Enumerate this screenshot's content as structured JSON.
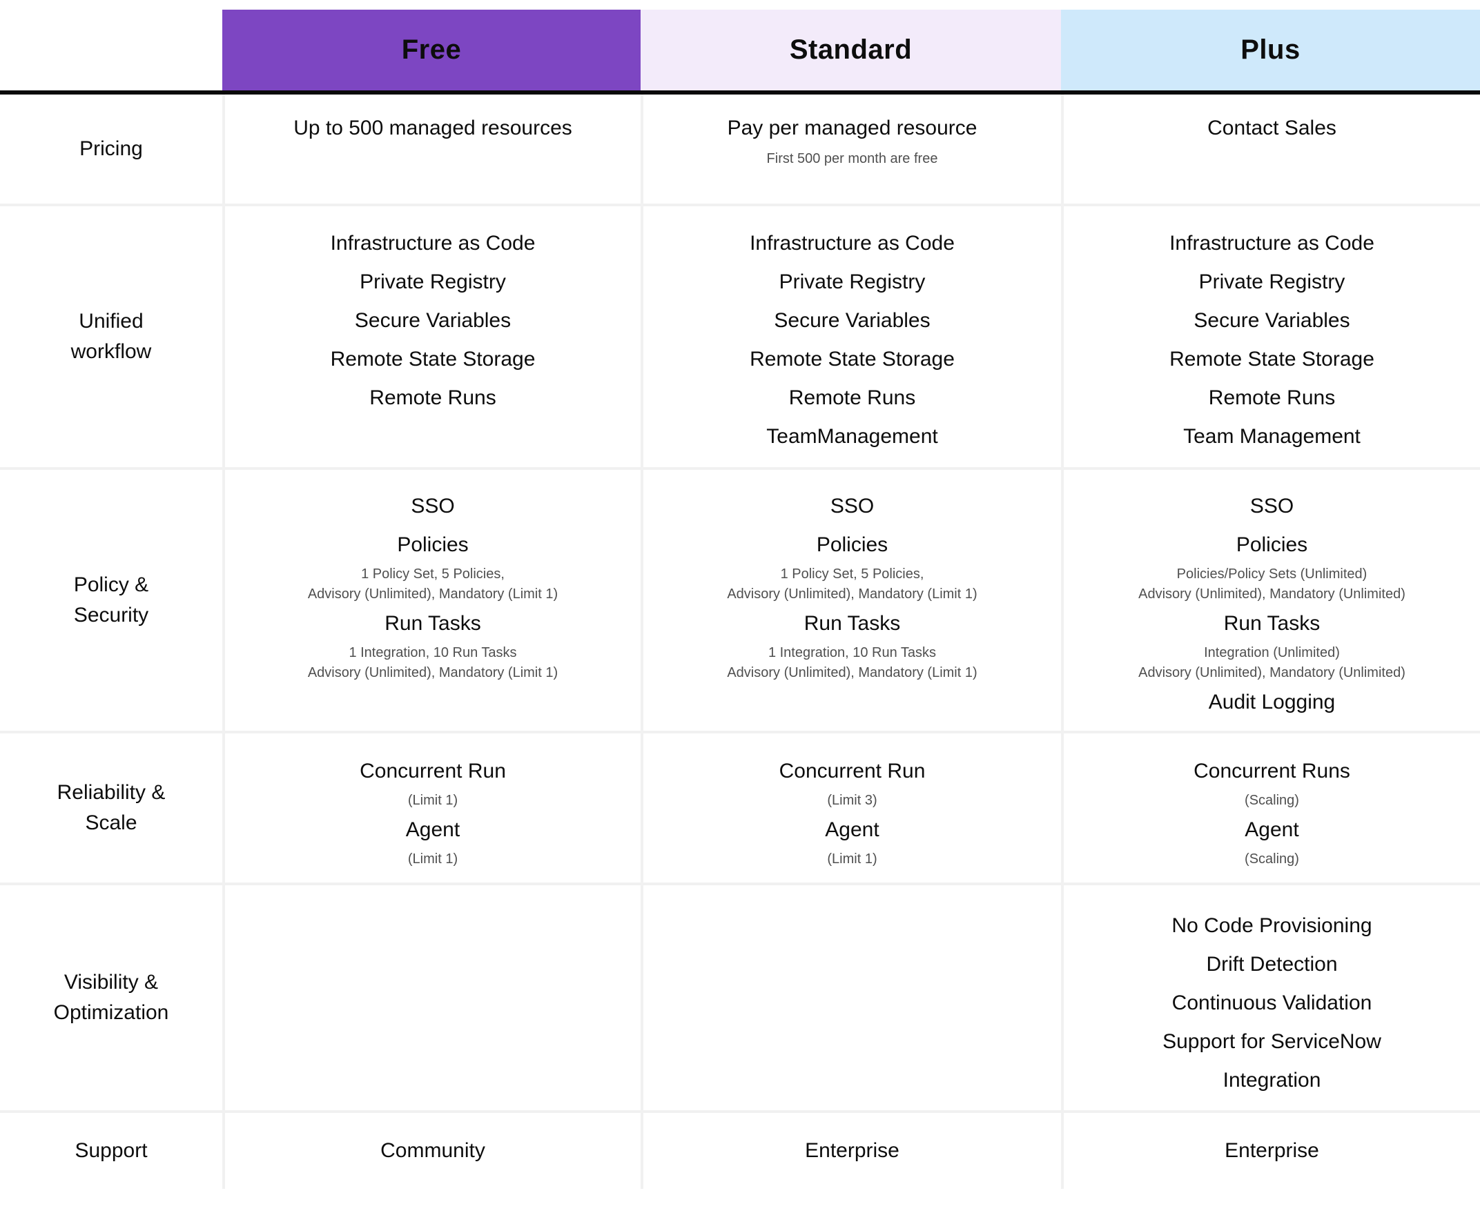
{
  "table": {
    "columns": [
      {
        "label": "Free",
        "header_bg": "#7d46c2"
      },
      {
        "label": "Standard",
        "header_bg": "#f3ebfa"
      },
      {
        "label": "Plus",
        "header_bg": "#cfe9fb"
      }
    ],
    "rows": [
      {
        "label": "Pricing",
        "cells": {
          "free": {
            "lines": [
              {
                "text": "Up to 500 managed resources",
                "type": "feature"
              }
            ]
          },
          "standard": {
            "lines": [
              {
                "text": "Pay per managed resource",
                "type": "feature"
              },
              {
                "text": "First 500 per month are free",
                "type": "note"
              }
            ]
          },
          "plus": {
            "lines": [
              {
                "text": "Contact Sales",
                "type": "feature"
              }
            ]
          }
        }
      },
      {
        "label": "Unified workflow",
        "cells": {
          "free": {
            "lines": [
              {
                "text": "Infrastructure as Code",
                "type": "feature"
              },
              {
                "text": "Private Registry",
                "type": "feature"
              },
              {
                "text": "Secure Variables",
                "type": "feature"
              },
              {
                "text": "Remote State Storage",
                "type": "feature"
              },
              {
                "text": "Remote Runs",
                "type": "feature"
              }
            ]
          },
          "standard": {
            "lines": [
              {
                "text": "Infrastructure as Code",
                "type": "feature"
              },
              {
                "text": "Private Registry",
                "type": "feature"
              },
              {
                "text": "Secure Variables",
                "type": "feature"
              },
              {
                "text": "Remote State Storage",
                "type": "feature"
              },
              {
                "text": "Remote Runs",
                "type": "feature"
              },
              {
                "text": "TeamManagement",
                "type": "feature"
              }
            ]
          },
          "plus": {
            "lines": [
              {
                "text": "Infrastructure as Code",
                "type": "feature"
              },
              {
                "text": "Private Registry",
                "type": "feature"
              },
              {
                "text": "Secure Variables",
                "type": "feature"
              },
              {
                "text": "Remote State Storage",
                "type": "feature"
              },
              {
                "text": "Remote Runs",
                "type": "feature"
              },
              {
                "text": "Team Management",
                "type": "feature"
              }
            ]
          }
        }
      },
      {
        "label": "Policy & Security",
        "cells": {
          "free": {
            "lines": [
              {
                "text": "SSO",
                "type": "feature"
              },
              {
                "text": "Policies",
                "type": "feature"
              },
              {
                "text": "1 Policy Set, 5 Policies,",
                "type": "note"
              },
              {
                "text": "Advisory (Unlimited), Mandatory (Limit 1)",
                "type": "note"
              },
              {
                "text": "Run Tasks",
                "type": "feature"
              },
              {
                "text": "1 Integration, 10 Run Tasks",
                "type": "note"
              },
              {
                "text": "Advisory (Unlimited), Mandatory (Limit 1)",
                "type": "note"
              }
            ]
          },
          "standard": {
            "lines": [
              {
                "text": "SSO",
                "type": "feature"
              },
              {
                "text": "Policies",
                "type": "feature"
              },
              {
                "text": "1 Policy Set, 5 Policies,",
                "type": "note"
              },
              {
                "text": "Advisory (Unlimited), Mandatory (Limit 1)",
                "type": "note"
              },
              {
                "text": "Run Tasks",
                "type": "feature"
              },
              {
                "text": "1 Integration, 10 Run Tasks",
                "type": "note"
              },
              {
                "text": "Advisory (Unlimited), Mandatory (Limit 1)",
                "type": "note"
              }
            ]
          },
          "plus": {
            "lines": [
              {
                "text": "SSO",
                "type": "feature"
              },
              {
                "text": "Policies",
                "type": "feature"
              },
              {
                "text": "Policies/Policy Sets (Unlimited)",
                "type": "note"
              },
              {
                "text": "Advisory (Unlimited), Mandatory (Unlimited)",
                "type": "note"
              },
              {
                "text": "Run Tasks",
                "type": "feature"
              },
              {
                "text": "Integration (Unlimited)",
                "type": "note"
              },
              {
                "text": "Advisory (Unlimited), Mandatory (Unlimited)",
                "type": "note"
              },
              {
                "text": "Audit Logging",
                "type": "feature"
              }
            ]
          }
        }
      },
      {
        "label": "Reliability & Scale",
        "cells": {
          "free": {
            "lines": [
              {
                "text": "Concurrent Run",
                "type": "feature"
              },
              {
                "text": "(Limit 1)",
                "type": "note"
              },
              {
                "text": "Agent",
                "type": "feature"
              },
              {
                "text": "(Limit 1)",
                "type": "note"
              }
            ]
          },
          "standard": {
            "lines": [
              {
                "text": "Concurrent Run",
                "type": "feature"
              },
              {
                "text": "(Limit 3)",
                "type": "note"
              },
              {
                "text": "Agent",
                "type": "feature"
              },
              {
                "text": "(Limit 1)",
                "type": "note"
              }
            ]
          },
          "plus": {
            "lines": [
              {
                "text": "Concurrent Runs",
                "type": "feature"
              },
              {
                "text": "(Scaling)",
                "type": "note"
              },
              {
                "text": "Agent",
                "type": "feature"
              },
              {
                "text": "(Scaling)",
                "type": "note"
              }
            ]
          }
        }
      },
      {
        "label": "Visibility & Optimization",
        "cells": {
          "free": {
            "lines": []
          },
          "standard": {
            "lines": []
          },
          "plus": {
            "lines": [
              {
                "text": "No Code Provisioning",
                "type": "feature"
              },
              {
                "text": "Drift Detection",
                "type": "feature"
              },
              {
                "text": "Continuous Validation",
                "type": "feature"
              },
              {
                "text": "Support for ServiceNow Integration",
                "type": "feature"
              }
            ]
          }
        }
      },
      {
        "label": "Support",
        "cells": {
          "free": {
            "lines": [
              {
                "text": "Community",
                "type": "feature"
              }
            ]
          },
          "standard": {
            "lines": [
              {
                "text": "Enterprise",
                "type": "feature"
              }
            ]
          },
          "plus": {
            "lines": [
              {
                "text": "Enterprise",
                "type": "feature"
              }
            ]
          }
        }
      }
    ]
  }
}
